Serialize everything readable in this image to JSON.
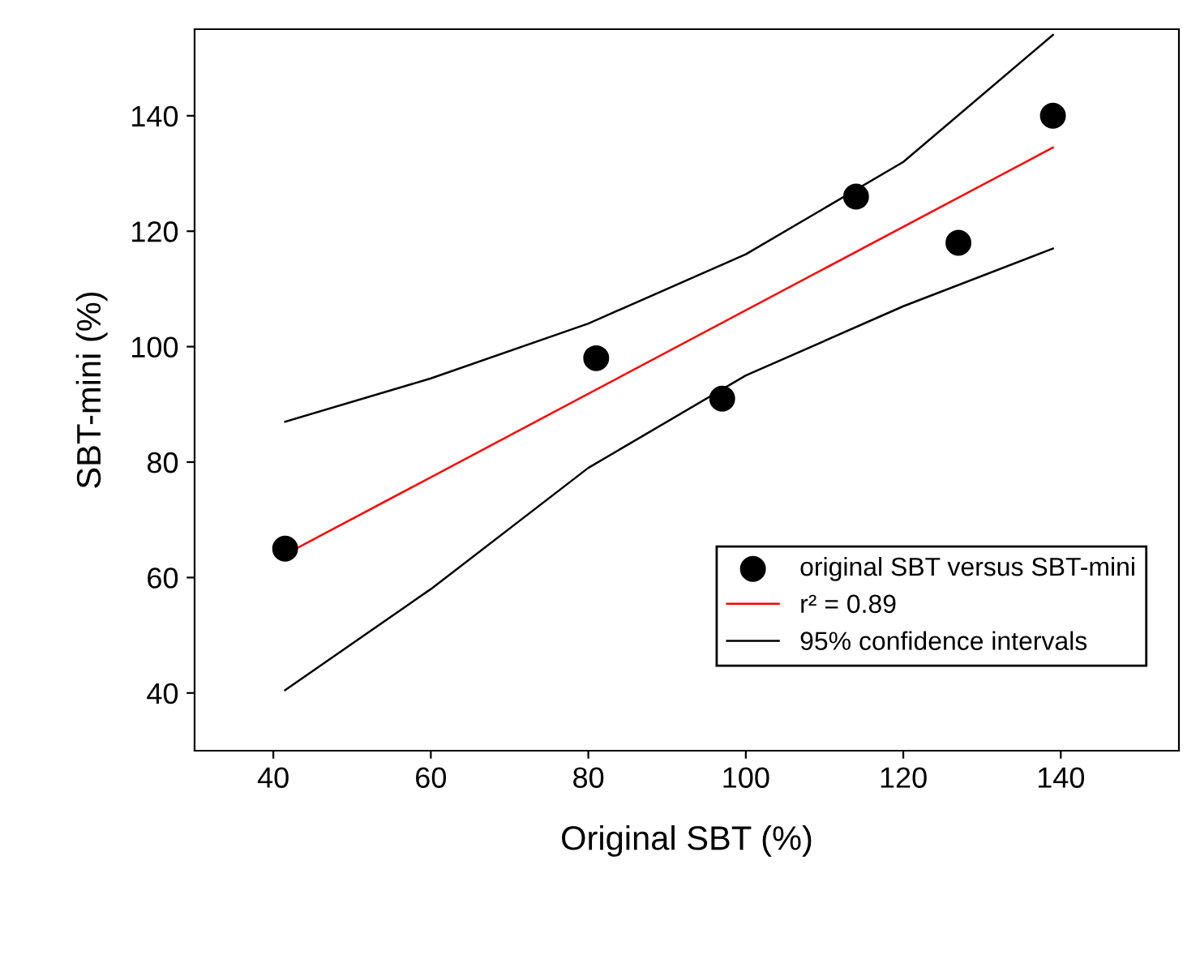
{
  "chart_data": {
    "type": "scatter",
    "xlabel": "Original SBT (%)",
    "ylabel": "SBT-mini (%)",
    "xlim": [
      30,
      155
    ],
    "ylim": [
      30,
      155
    ],
    "xticks": [
      40,
      60,
      80,
      100,
      120,
      140
    ],
    "yticks": [
      40,
      60,
      80,
      100,
      120,
      140
    ],
    "grid": false,
    "legend": "bottom right",
    "series": [
      {
        "name": "original SBT versus SBT-mini",
        "marker": "circle",
        "color": "#000000",
        "x": [
          41.5,
          81,
          97,
          114,
          127,
          139
        ],
        "values": [
          65,
          98,
          91,
          126,
          118,
          140
        ]
      },
      {
        "name": "r² = 0.89",
        "type": "line",
        "marker": "none",
        "color": "#ff0000",
        "x": [
          41.5,
          139
        ],
        "values": [
          64,
          134.5
        ]
      },
      {
        "name": "95% confidence intervals",
        "type": "line",
        "marker": "none",
        "color": "#000000",
        "x": [
          41.5,
          60,
          80,
          100,
          120,
          139
        ],
        "values": [
          87,
          94.5,
          104,
          116,
          132,
          154
        ]
      },
      {
        "type": "line",
        "marker": "none",
        "color": "#000000",
        "x": [
          41.5,
          60,
          80,
          100,
          120,
          139
        ],
        "values": [
          40.5,
          58,
          79,
          95,
          107,
          117
        ]
      }
    ]
  }
}
